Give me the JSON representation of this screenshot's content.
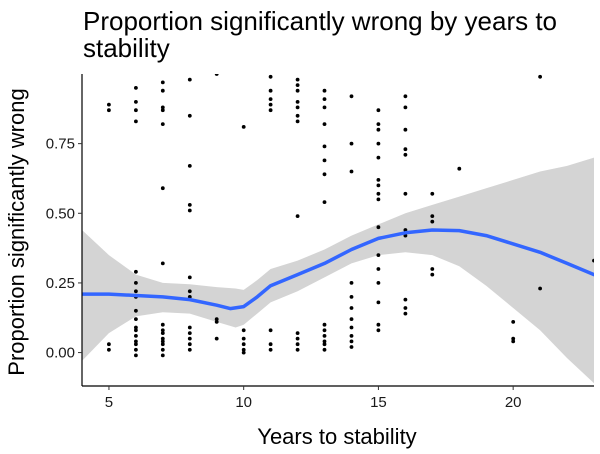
{
  "chart_data": {
    "type": "scatter",
    "title_lines": [
      "Proportion significantly wrong by years to",
      "stability"
    ],
    "xlabel": "Years to stability",
    "ylabel": "Proportion significantly wrong",
    "xlim": [
      4,
      23
    ],
    "ylim": [
      -0.12,
      1.0
    ],
    "x_ticks": [
      5,
      10,
      15,
      20
    ],
    "y_ticks": [
      0.0,
      0.25,
      0.5,
      0.75
    ],
    "y_tick_labels": [
      "0.00",
      "0.25",
      "0.50",
      "0.75"
    ],
    "grid": false,
    "legend": "none",
    "colors": {
      "points": "#000000",
      "smooth_line": "#3366ff",
      "ribbon": "#d4d4d4"
    },
    "points": [
      [
        5,
        0.89
      ],
      [
        5,
        0.87
      ],
      [
        5,
        0.03
      ],
      [
        5,
        0.01
      ],
      [
        6,
        0.95
      ],
      [
        6,
        0.9
      ],
      [
        6,
        0.87
      ],
      [
        6,
        0.83
      ],
      [
        6,
        0.29
      ],
      [
        6,
        0.25
      ],
      [
        6,
        0.22
      ],
      [
        6,
        0.2
      ],
      [
        6,
        0.15
      ],
      [
        6,
        0.12
      ],
      [
        6,
        0.09
      ],
      [
        6,
        0.08
      ],
      [
        6,
        0.06
      ],
      [
        6,
        0.04
      ],
      [
        6,
        0.03
      ],
      [
        6,
        0.01
      ],
      [
        6,
        -0.01
      ],
      [
        7,
        0.97
      ],
      [
        7,
        0.94
      ],
      [
        7,
        0.88
      ],
      [
        7,
        0.87
      ],
      [
        7,
        0.82
      ],
      [
        7,
        0.59
      ],
      [
        7,
        0.32
      ],
      [
        7,
        0.1
      ],
      [
        7,
        0.08
      ],
      [
        7,
        0.07
      ],
      [
        7,
        0.05
      ],
      [
        7,
        0.04
      ],
      [
        7,
        0.03
      ],
      [
        7,
        0.01
      ],
      [
        7,
        -0.01
      ],
      [
        8,
        0.98
      ],
      [
        8,
        0.85
      ],
      [
        8,
        0.67
      ],
      [
        8,
        0.53
      ],
      [
        8,
        0.51
      ],
      [
        8,
        0.27
      ],
      [
        8,
        0.22
      ],
      [
        8,
        0.2
      ],
      [
        8,
        0.09
      ],
      [
        8,
        0.07
      ],
      [
        8,
        0.05
      ],
      [
        8,
        0.03
      ],
      [
        8,
        0.01
      ],
      [
        9,
        1.0
      ],
      [
        9,
        0.12
      ],
      [
        9,
        0.11
      ],
      [
        9,
        0.05
      ],
      [
        10,
        0.81
      ],
      [
        10,
        0.08
      ],
      [
        10,
        0.05
      ],
      [
        10,
        0.03
      ],
      [
        10,
        0.01
      ],
      [
        10,
        0.0
      ],
      [
        11,
        0.99
      ],
      [
        11,
        0.94
      ],
      [
        11,
        0.91
      ],
      [
        11,
        0.89
      ],
      [
        11,
        0.87
      ],
      [
        11,
        0.08
      ],
      [
        11,
        0.03
      ],
      [
        11,
        0.01
      ],
      [
        12,
        0.98
      ],
      [
        12,
        0.96
      ],
      [
        12,
        0.94
      ],
      [
        12,
        0.9
      ],
      [
        12,
        0.88
      ],
      [
        12,
        0.85
      ],
      [
        12,
        0.83
      ],
      [
        12,
        0.49
      ],
      [
        12,
        0.07
      ],
      [
        12,
        0.05
      ],
      [
        12,
        0.03
      ],
      [
        12,
        0.01
      ],
      [
        13,
        0.94
      ],
      [
        13,
        0.91
      ],
      [
        13,
        0.88
      ],
      [
        13,
        0.82
      ],
      [
        13,
        0.74
      ],
      [
        13,
        0.69
      ],
      [
        13,
        0.64
      ],
      [
        13,
        0.54
      ],
      [
        13,
        0.1
      ],
      [
        13,
        0.08
      ],
      [
        13,
        0.06
      ],
      [
        13,
        0.04
      ],
      [
        13,
        0.03
      ],
      [
        13,
        0.01
      ],
      [
        14,
        0.92
      ],
      [
        14,
        0.75
      ],
      [
        14,
        0.65
      ],
      [
        14,
        0.25
      ],
      [
        14,
        0.2
      ],
      [
        14,
        0.16
      ],
      [
        14,
        0.12
      ],
      [
        14,
        0.09
      ],
      [
        14,
        0.06
      ],
      [
        14,
        0.04
      ],
      [
        14,
        0.02
      ],
      [
        15,
        0.87
      ],
      [
        15,
        0.82
      ],
      [
        15,
        0.8
      ],
      [
        15,
        0.75
      ],
      [
        15,
        0.7
      ],
      [
        15,
        0.62
      ],
      [
        15,
        0.6
      ],
      [
        15,
        0.57
      ],
      [
        15,
        0.55
      ],
      [
        15,
        0.45
      ],
      [
        15,
        0.35
      ],
      [
        15,
        0.3
      ],
      [
        15,
        0.25
      ],
      [
        15,
        0.18
      ],
      [
        15,
        0.1
      ],
      [
        15,
        0.08
      ],
      [
        16,
        0.92
      ],
      [
        16,
        0.88
      ],
      [
        16,
        0.8
      ],
      [
        16,
        0.73
      ],
      [
        16,
        0.71
      ],
      [
        16,
        0.57
      ],
      [
        16,
        0.44
      ],
      [
        16,
        0.42
      ],
      [
        16,
        0.19
      ],
      [
        16,
        0.16
      ],
      [
        16,
        0.14
      ],
      [
        17,
        0.57
      ],
      [
        17,
        0.49
      ],
      [
        17,
        0.47
      ],
      [
        17,
        0.3
      ],
      [
        17,
        0.28
      ],
      [
        18,
        0.66
      ],
      [
        20,
        0.11
      ],
      [
        20,
        0.05
      ],
      [
        20,
        0.04
      ],
      [
        21,
        0.99
      ],
      [
        21,
        0.23
      ],
      [
        23,
        0.33
      ]
    ],
    "smooth": [
      [
        4,
        0.21
      ],
      [
        5,
        0.21
      ],
      [
        6,
        0.205
      ],
      [
        7,
        0.2
      ],
      [
        8,
        0.19
      ],
      [
        9,
        0.17
      ],
      [
        9.5,
        0.158
      ],
      [
        10,
        0.165
      ],
      [
        10.5,
        0.2
      ],
      [
        11,
        0.24
      ],
      [
        12,
        0.28
      ],
      [
        13,
        0.32
      ],
      [
        14,
        0.37
      ],
      [
        15,
        0.41
      ],
      [
        16,
        0.43
      ],
      [
        17,
        0.44
      ],
      [
        18,
        0.438
      ],
      [
        19,
        0.42
      ],
      [
        20,
        0.39
      ],
      [
        21,
        0.36
      ],
      [
        22,
        0.32
      ],
      [
        23,
        0.28
      ]
    ],
    "ribbon_upper": [
      [
        4,
        0.44
      ],
      [
        5,
        0.35
      ],
      [
        6,
        0.28
      ],
      [
        7,
        0.25
      ],
      [
        8,
        0.245
      ],
      [
        9,
        0.235
      ],
      [
        9.7,
        0.23
      ],
      [
        10,
        0.225
      ],
      [
        10.5,
        0.26
      ],
      [
        11,
        0.3
      ],
      [
        12,
        0.33
      ],
      [
        13,
        0.37
      ],
      [
        14,
        0.42
      ],
      [
        15,
        0.46
      ],
      [
        16,
        0.5
      ],
      [
        17,
        0.53
      ],
      [
        18,
        0.56
      ],
      [
        19,
        0.59
      ],
      [
        20,
        0.62
      ],
      [
        21,
        0.65
      ],
      [
        22,
        0.67
      ],
      [
        23,
        0.7
      ]
    ],
    "ribbon_lower": [
      [
        4,
        -0.03
      ],
      [
        5,
        0.07
      ],
      [
        6,
        0.13
      ],
      [
        7,
        0.145
      ],
      [
        8,
        0.14
      ],
      [
        9,
        0.11
      ],
      [
        9.7,
        0.09
      ],
      [
        10,
        0.1
      ],
      [
        10.5,
        0.14
      ],
      [
        11,
        0.18
      ],
      [
        12,
        0.22
      ],
      [
        13,
        0.27
      ],
      [
        14,
        0.32
      ],
      [
        15,
        0.35
      ],
      [
        16,
        0.36
      ],
      [
        17,
        0.35
      ],
      [
        18,
        0.31
      ],
      [
        19,
        0.24
      ],
      [
        20,
        0.16
      ],
      [
        21,
        0.08
      ],
      [
        22,
        -0.02
      ],
      [
        23,
        -0.11
      ]
    ]
  }
}
